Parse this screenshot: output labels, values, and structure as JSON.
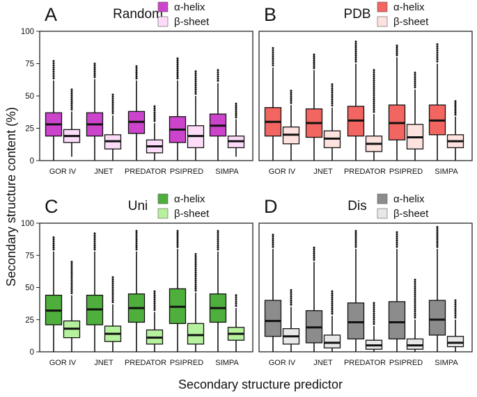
{
  "figure": {
    "ylabel": "Secondary structure content (%)",
    "xlabel": "Secondary structure predictor"
  },
  "chart_data": [
    {
      "type": "boxplot",
      "panel": "A",
      "title": "Random",
      "categories": [
        "GOR IV",
        "JNET",
        "PREDATOR",
        "PSIPRED",
        "SIMPA"
      ],
      "ylim": [
        0,
        100
      ],
      "yticks": [
        "0",
        "25",
        "50",
        "75",
        "100"
      ],
      "legend": [
        "α-helix",
        "β-sheet"
      ],
      "colors": {
        "helix": "#cc44cc",
        "sheet": "#fcdcf8"
      },
      "series": [
        {
          "name": "α-helix",
          "boxes": [
            {
              "wlo": 0,
              "q1": 19,
              "med": 28,
              "q3": 37,
              "whi": 62,
              "omax": 77
            },
            {
              "wlo": 0,
              "q1": 19,
              "med": 28,
              "q3": 37,
              "whi": 63,
              "omax": 75
            },
            {
              "wlo": 0,
              "q1": 21,
              "med": 30,
              "q3": 38,
              "whi": 62,
              "omax": 73
            },
            {
              "wlo": 0,
              "q1": 14,
              "med": 24,
              "q3": 34,
              "whi": 62,
              "omax": 79
            },
            {
              "wlo": 0,
              "q1": 19,
              "med": 27,
              "q3": 36,
              "whi": 60,
              "omax": 70
            }
          ]
        },
        {
          "name": "β-sheet",
          "boxes": [
            {
              "wlo": 3,
              "q1": 14,
              "med": 19,
              "q3": 24,
              "whi": 38,
              "omax": 55
            },
            {
              "wlo": 0,
              "q1": 9,
              "med": 15,
              "q3": 20,
              "whi": 35,
              "omax": 51
            },
            {
              "wlo": 0,
              "q1": 6,
              "med": 11,
              "q3": 16,
              "whi": 29,
              "omax": 42
            },
            {
              "wlo": 0,
              "q1": 10,
              "med": 19,
              "q3": 27,
              "whi": 50,
              "omax": 69
            },
            {
              "wlo": 3,
              "q1": 10,
              "med": 15,
              "q3": 19,
              "whi": 32,
              "omax": 44
            }
          ]
        }
      ]
    },
    {
      "type": "boxplot",
      "panel": "B",
      "title": "PDB",
      "categories": [
        "GOR IV",
        "JNET",
        "PREDATOR",
        "PSIPRED",
        "SIMPA"
      ],
      "ylim": [
        0,
        100
      ],
      "yticks": [],
      "legend": [
        "α-helix",
        "β-sheet"
      ],
      "colors": {
        "helix": "#f26560",
        "sheet": "#fde2df"
      },
      "series": [
        {
          "name": "α-helix",
          "boxes": [
            {
              "wlo": 0,
              "q1": 19,
              "med": 30,
              "q3": 41,
              "whi": 72,
              "omax": 87
            },
            {
              "wlo": 0,
              "q1": 18,
              "med": 29,
              "q3": 40,
              "whi": 70,
              "omax": 82
            },
            {
              "wlo": 0,
              "q1": 19,
              "med": 31,
              "q3": 42,
              "whi": 75,
              "omax": 92
            },
            {
              "wlo": 0,
              "q1": 16,
              "med": 29,
              "q3": 43,
              "whi": 80,
              "omax": 89
            },
            {
              "wlo": 0,
              "q1": 20,
              "med": 31,
              "q3": 43,
              "whi": 75,
              "omax": 90
            }
          ]
        },
        {
          "name": "β-sheet",
          "boxes": [
            {
              "wlo": 0,
              "q1": 13,
              "med": 20,
              "q3": 26,
              "whi": 43,
              "omax": 54
            },
            {
              "wlo": 0,
              "q1": 10,
              "med": 17,
              "q3": 23,
              "whi": 41,
              "omax": 59
            },
            {
              "wlo": 0,
              "q1": 7,
              "med": 13,
              "q3": 19,
              "whi": 36,
              "omax": 70
            },
            {
              "wlo": 0,
              "q1": 9,
              "med": 18,
              "q3": 28,
              "whi": 55,
              "omax": 68
            },
            {
              "wlo": 0,
              "q1": 10,
              "med": 15,
              "q3": 20,
              "whi": 34,
              "omax": 46
            }
          ]
        }
      ]
    },
    {
      "type": "boxplot",
      "panel": "C",
      "title": "Uni",
      "categories": [
        "GOR IV",
        "JNET",
        "PREDATOR",
        "PSIPRED",
        "SIMPA"
      ],
      "ylim": [
        0,
        100
      ],
      "yticks": [
        "0",
        "25",
        "50",
        "75",
        "100"
      ],
      "legend": [
        "α-helix",
        "β-sheet"
      ],
      "colors": {
        "helix": "#4faf3c",
        "sheet": "#b6f29d"
      },
      "series": [
        {
          "name": "α-helix",
          "boxes": [
            {
              "wlo": 0,
              "q1": 21,
              "med": 32,
              "q3": 44,
              "whi": 78,
              "omax": 89
            },
            {
              "wlo": 0,
              "q1": 21,
              "med": 33,
              "q3": 44,
              "whi": 78,
              "omax": 92
            },
            {
              "wlo": 0,
              "q1": 23,
              "med": 34,
              "q3": 45,
              "whi": 78,
              "omax": 94
            },
            {
              "wlo": 0,
              "q1": 22,
              "med": 35,
              "q3": 49,
              "whi": 80,
              "omax": 94
            },
            {
              "wlo": 0,
              "q1": 23,
              "med": 34,
              "q3": 45,
              "whi": 78,
              "omax": 94
            }
          ]
        },
        {
          "name": "β-sheet",
          "boxes": [
            {
              "wlo": 0,
              "q1": 11,
              "med": 18,
              "q3": 24,
              "whi": 44,
              "omax": 70
            },
            {
              "wlo": 0,
              "q1": 8,
              "med": 14,
              "q3": 20,
              "whi": 37,
              "omax": 58
            },
            {
              "wlo": 0,
              "q1": 6,
              "med": 11,
              "q3": 17,
              "whi": 31,
              "omax": 47
            },
            {
              "wlo": 0,
              "q1": 6,
              "med": 13,
              "q3": 22,
              "whi": 46,
              "omax": 76
            },
            {
              "wlo": 0,
              "q1": 9,
              "med": 14,
              "q3": 19,
              "whi": 34,
              "omax": 44
            }
          ]
        }
      ]
    },
    {
      "type": "boxplot",
      "panel": "D",
      "title": "Dis",
      "categories": [
        "GOR IV",
        "JNET",
        "PREDATOR",
        "PSIPRED",
        "SIMPA"
      ],
      "ylim": [
        0,
        100
      ],
      "yticks": [],
      "legend": [
        "α-helix",
        "β-sheet"
      ],
      "colors": {
        "helix": "#8c8c8c",
        "sheet": "#e8e8e8"
      },
      "series": [
        {
          "name": "α-helix",
          "boxes": [
            {
              "wlo": 0,
              "q1": 12,
              "med": 24,
              "q3": 40,
              "whi": 80,
              "omax": 91
            },
            {
              "wlo": 0,
              "q1": 7,
              "med": 19,
              "q3": 32,
              "whi": 70,
              "omax": 81
            },
            {
              "wlo": 0,
              "q1": 10,
              "med": 23,
              "q3": 38,
              "whi": 80,
              "omax": 94
            },
            {
              "wlo": 0,
              "q1": 10,
              "med": 23,
              "q3": 39,
              "whi": 80,
              "omax": 93
            },
            {
              "wlo": 0,
              "q1": 13,
              "med": 25,
              "q3": 40,
              "whi": 80,
              "omax": 97
            }
          ]
        },
        {
          "name": "β-sheet",
          "boxes": [
            {
              "wlo": 0,
              "q1": 6,
              "med": 12,
              "q3": 18,
              "whi": 35,
              "omax": 48
            },
            {
              "wlo": 0,
              "q1": 3,
              "med": 7,
              "q3": 13,
              "whi": 28,
              "omax": 47
            },
            {
              "wlo": 0,
              "q1": 2,
              "med": 5,
              "q3": 9,
              "whi": 20,
              "omax": 38
            },
            {
              "wlo": 0,
              "q1": 2,
              "med": 5,
              "q3": 10,
              "whi": 25,
              "omax": 56
            },
            {
              "wlo": 0,
              "q1": 4,
              "med": 7,
              "q3": 12,
              "whi": 25,
              "omax": 40
            }
          ]
        }
      ]
    }
  ]
}
